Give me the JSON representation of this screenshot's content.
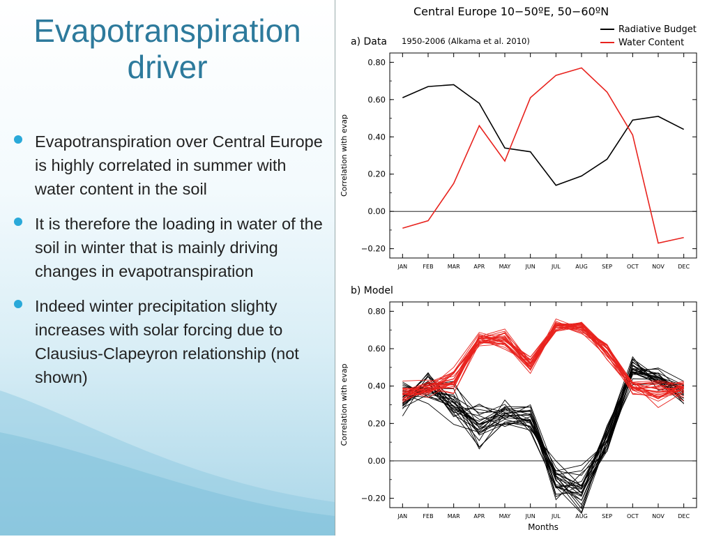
{
  "slide": {
    "title": "Evapotranspiration driver",
    "bullets": [
      "Evapotranspiration over Central Europe is highly correlated in summer with water content in the soil",
      "It is therefore the loading in water of the soil in winter that is mainly driving changes in evapotranspiration",
      "Indeed winter precipitation slighty increases with solar forcing due to Clausius-Clapeyron relationship (not shown)"
    ],
    "accent_color": "#2d7a9c",
    "bullet_color": "#2aa9d9"
  },
  "figure": {
    "title": "Central Europe 10−50ºE, 50−60ºN",
    "legend": [
      {
        "label": "Radiative Budget",
        "color": "#000000"
      },
      {
        "label": "Water Content",
        "color": "#e8231e"
      }
    ]
  },
  "chart_data": [
    {
      "type": "line",
      "panel_label": "a) Data",
      "annotation": "1950-2006 (Alkama  et al. 2010)",
      "categories": [
        "JAN",
        "FEB",
        "MAR",
        "APR",
        "MAY",
        "JUN",
        "JUL",
        "AUG",
        "SEP",
        "OCT",
        "NOV",
        "DEC"
      ],
      "ylabel": "Correlation with evap",
      "xlabel": "",
      "ylim": [
        -0.25,
        0.85
      ],
      "yticks": [
        "0.80",
        "0.60",
        "0.40",
        "0.20",
        "0.00",
        "−0.20"
      ],
      "ytick_values": [
        0.8,
        0.6,
        0.4,
        0.2,
        0.0,
        -0.2
      ],
      "zero_line": true,
      "series": [
        {
          "name": "Radiative Budget",
          "color": "#000000",
          "values": [
            0.61,
            0.67,
            0.68,
            0.58,
            0.34,
            0.32,
            0.14,
            0.19,
            0.28,
            0.49,
            0.51,
            0.44
          ]
        },
        {
          "name": "Water Content",
          "color": "#e8231e",
          "values": [
            -0.09,
            -0.05,
            0.15,
            0.46,
            0.27,
            0.61,
            0.73,
            0.77,
            0.64,
            0.41,
            -0.17,
            -0.14
          ]
        }
      ]
    },
    {
      "type": "line",
      "panel_label": "b) Model",
      "categories": [
        "JAN",
        "FEB",
        "MAR",
        "APR",
        "MAY",
        "JUN",
        "JUL",
        "AUG",
        "SEP",
        "OCT",
        "NOV",
        "DEC"
      ],
      "ylabel": "Correlation with evap",
      "xlabel": "Months",
      "ylim": [
        -0.25,
        0.85
      ],
      "yticks": [
        "0.80",
        "0.60",
        "0.40",
        "0.20",
        "0.00",
        "−0.20"
      ],
      "ytick_values": [
        0.8,
        0.6,
        0.4,
        0.2,
        0.0,
        -0.2
      ],
      "zero_line": true,
      "ensemble": [
        {
          "name": "Radiative Budget",
          "color": "#000000",
          "members": 25,
          "mean": [
            0.33,
            0.38,
            0.3,
            0.18,
            0.24,
            0.23,
            -0.1,
            -0.14,
            0.12,
            0.5,
            0.44,
            0.37
          ],
          "spread": [
            0.1,
            0.09,
            0.1,
            0.11,
            0.08,
            0.08,
            0.1,
            0.12,
            0.13,
            0.07,
            0.07,
            0.07
          ]
        },
        {
          "name": "Water Content",
          "color": "#e8231e",
          "members": 25,
          "mean": [
            0.37,
            0.38,
            0.42,
            0.66,
            0.65,
            0.51,
            0.72,
            0.72,
            0.59,
            0.4,
            0.37,
            0.38
          ],
          "spread": [
            0.06,
            0.06,
            0.07,
            0.04,
            0.05,
            0.06,
            0.04,
            0.04,
            0.05,
            0.05,
            0.07,
            0.05
          ]
        }
      ]
    }
  ]
}
